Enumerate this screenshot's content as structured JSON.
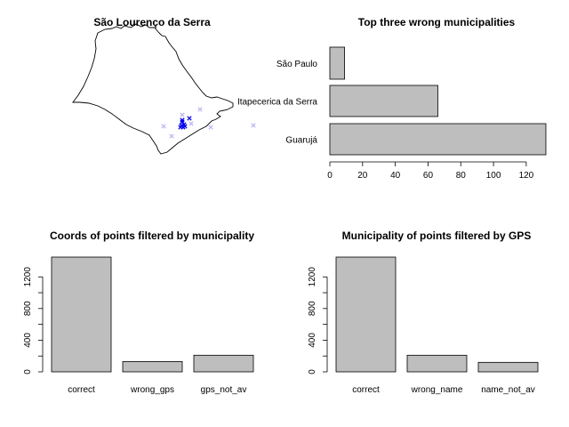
{
  "colors": {
    "bar_fill": "#bebebe",
    "bar_stroke": "#000000",
    "point_dark": "#0000ee",
    "point_light": "#b8b8f5"
  },
  "map_panel": {
    "title": "São Lourenço da Serra"
  },
  "chart_data": [
    {
      "type": "scatter",
      "title": "São Lourenço da Serra",
      "subtype": "map",
      "region": "São Paulo state outline",
      "series": [
        {
          "points_note": "",
          "marker": "x",
          "color": "#0000ee"
        }
      ]
    },
    {
      "type": "bar",
      "orientation": "horizontal",
      "title": "Top three wrong municipalities",
      "categories": [
        "Guarujá",
        "Itapecerica da Serra",
        "São Paulo"
      ],
      "values": [
        132,
        66,
        9
      ],
      "xlim": [
        0,
        132
      ],
      "xticks": [
        "0",
        "20",
        "40",
        "60",
        "80",
        "100",
        "120"
      ]
    },
    {
      "type": "bar",
      "orientation": "vertical",
      "title": "Coords of points filtered by municipality",
      "categories": [
        "correct",
        "wrong_gps",
        "gps_not_av"
      ],
      "values": [
        1450,
        130,
        210
      ],
      "ylim": [
        0,
        1450
      ],
      "yticks": [
        "0",
        "400",
        "800",
        "1200"
      ]
    },
    {
      "type": "bar",
      "orientation": "vertical",
      "title": "Municipality of points filtered by GPS",
      "categories": [
        "correct",
        "wrong_name",
        "name_not_av"
      ],
      "values": [
        1450,
        210,
        120
      ],
      "ylim": [
        0,
        1450
      ],
      "yticks": [
        "0",
        "400",
        "800",
        "1200"
      ]
    }
  ]
}
